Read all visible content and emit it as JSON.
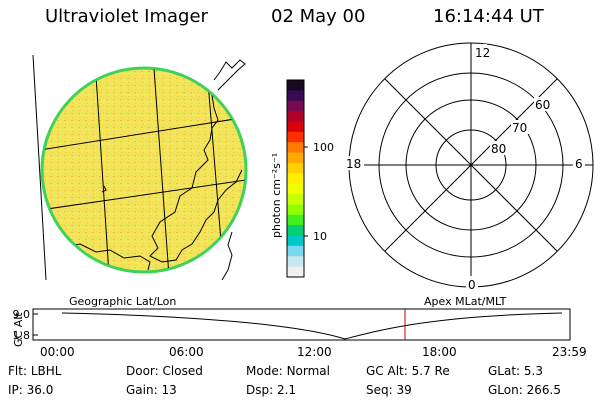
{
  "header": {
    "instrument": "Ultraviolet Imager",
    "date": "02 May 00",
    "time": "16:14:44 UT"
  },
  "colorbar": {
    "label": "photon cm⁻²s⁻¹",
    "ticks": [
      "100",
      "10"
    ],
    "colors": [
      "#1a0820",
      "#3a0a55",
      "#7a0a50",
      "#b00025",
      "#d8000a",
      "#ff3000",
      "#ff7a00",
      "#ffa800",
      "#ffd000",
      "#fff000",
      "#f0ff00",
      "#c8ff00",
      "#90ff00",
      "#40f020",
      "#00d070",
      "#00c8c8",
      "#7ad8f0",
      "#c8e8f0",
      "#f0f0f0"
    ]
  },
  "map": {
    "title": "Geographic Lat/Lon",
    "fill": "#f6e85a",
    "edge": "#3fd25a"
  },
  "polar": {
    "title": "Apex MLat/MLT",
    "mlt_labels": {
      "top": "12",
      "left": "18",
      "right": "6",
      "bottom": "0"
    },
    "lat_labels": [
      "60",
      "70",
      "80"
    ]
  },
  "altitude_plot": {
    "axis_label": "GC Alt",
    "y_ticks": [
      "9.0",
      "1.8"
    ],
    "x_ticks": [
      "00:00",
      "06:00",
      "12:00",
      "18:00",
      "23:59"
    ],
    "marker_color": "#c00000"
  },
  "info": [
    [
      {
        "k": "Flt:",
        "v": "LBHL"
      },
      {
        "k": "Door:",
        "v": "Closed"
      },
      {
        "k": "Mode:",
        "v": "Normal"
      },
      {
        "k": "GC Alt:",
        "v": "5.7 Re"
      },
      {
        "k": "GLat:",
        "v": "5.3"
      }
    ],
    [
      {
        "k": "IP:",
        "v": "36.0"
      },
      {
        "k": "Gain:",
        "v": "13"
      },
      {
        "k": "Dsp:",
        "v": "2.1"
      },
      {
        "k": "Seq:",
        "v": "39"
      },
      {
        "k": "GLon:",
        "v": "266.5"
      }
    ]
  ]
}
